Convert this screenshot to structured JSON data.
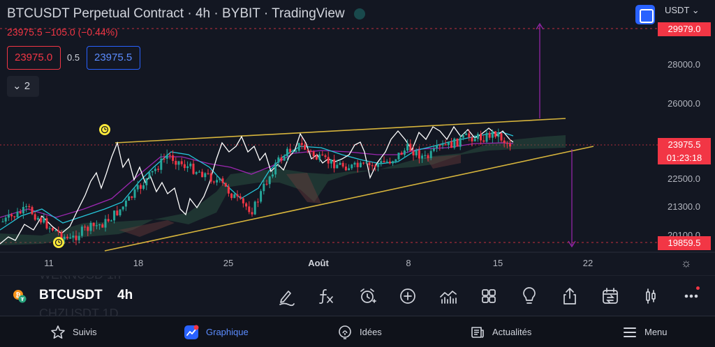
{
  "header": {
    "title": "BTCUSDT Perpetual Contract · 4h · BYBIT · TradingView",
    "change": "23975.5 −105.0 (−0.44%)",
    "sell_price": "23975.0",
    "spread": "0.5",
    "buy_price": "23975.5",
    "indicators_toggle": "⌄ 2",
    "currency": "USDT ⌄"
  },
  "price_axis": {
    "labels": [
      "28000.0",
      "26000.0",
      "22500.0",
      "21300.0",
      "20100.0"
    ],
    "upper_tag": "29979.0",
    "current_price": "23975.5",
    "countdown": "01:23:18",
    "lower_tag": "19859.5"
  },
  "time_axis": {
    "labels": [
      "11",
      "18",
      "25",
      "Août",
      "8",
      "15",
      "22"
    ]
  },
  "symbol_bar": {
    "symbol": "BTCUSDT",
    "timeframe": "4h",
    "ghost_above": "WEKNUSD 1h",
    "ghost_below": "CHZUSDT 1D",
    "tools": [
      "drawing-tools",
      "indicators",
      "alerts",
      "add-symbol",
      "compare",
      "layouts",
      "ideas",
      "share",
      "replay",
      "object-tree",
      "more"
    ]
  },
  "bottom_nav": {
    "items": [
      {
        "label": "Suivis",
        "icon": "star-icon"
      },
      {
        "label": "Graphique",
        "icon": "chart-icon"
      },
      {
        "label": "Idées",
        "icon": "lightbulb-icon"
      },
      {
        "label": "Actualités",
        "icon": "news-icon"
      },
      {
        "label": "Menu",
        "icon": "hamburger-icon"
      }
    ],
    "active": "Graphique"
  },
  "colors": {
    "background": "#131722",
    "up": "#26a69a",
    "down": "#f23645",
    "accent": "#2962ff",
    "trendline": "#d6b43c",
    "measure": "#9c27b0",
    "compare_line": "#ffffff"
  }
}
